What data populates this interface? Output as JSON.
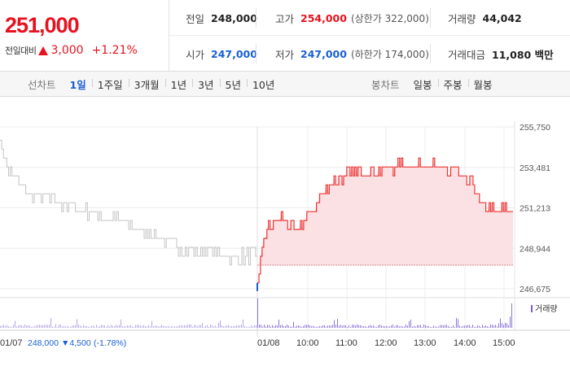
{
  "quote": {
    "price": "251,000",
    "change_label": "전일대비",
    "change_icon": "triangle-up-icon",
    "change_amount": "3,000",
    "change_rate": "+1.21%",
    "prev_close_label": "전일",
    "prev_close": "248,000",
    "high_label": "고가",
    "high": "254,000",
    "upper_limit": "(상한가 322,000)",
    "volume_label": "거래량",
    "volume": "44,042",
    "open_label": "시가",
    "open": "247,000",
    "low_label": "저가",
    "low": "247,000",
    "lower_limit": "(하한가 174,000)",
    "amount_label": "거래대금",
    "amount": "11,080 백만"
  },
  "colors": {
    "up": "#e8121f",
    "down": "#1a5fd6",
    "today_line": "#ee3333",
    "today_fill": "#fbe1e3",
    "prev_line": "#c4c4c4",
    "volume": "#7a5fd0"
  },
  "periods": {
    "line_label": "선차트",
    "line_items": [
      "1일",
      "1주일",
      "3개월",
      "1년",
      "3년",
      "5년",
      "10년"
    ],
    "line_active": 0,
    "candle_label": "봉차트",
    "candle_items": [
      "일봉",
      "주봉",
      "월봉"
    ]
  },
  "chart_data": {
    "type": "line",
    "y_ticks": [
      "255,750",
      "253,481",
      "251,213",
      "248,944",
      "246,675"
    ],
    "ylim": [
      246675,
      255750
    ],
    "prev_day": {
      "date": "01/07",
      "close": "248,000",
      "change": "▼4,500",
      "rate": "(-1.78%)",
      "start": 253200,
      "end": 248500,
      "path": [
        [
          0,
          254800
        ],
        [
          0.04,
          253100
        ],
        [
          0.1,
          252100
        ],
        [
          0.2,
          251600
        ],
        [
          0.35,
          251000
        ],
        [
          0.5,
          250300
        ],
        [
          0.6,
          249700
        ],
        [
          0.7,
          249000
        ],
        [
          0.78,
          248800
        ],
        [
          0.9,
          248500
        ],
        [
          1,
          248500
        ]
      ]
    },
    "today": {
      "date": "01/08",
      "open": 247000,
      "base": 248000,
      "time_ticks": [
        "10:00",
        "11:00",
        "12:00",
        "13:00",
        "14:00",
        "15:00"
      ],
      "path": [
        [
          0,
          247000
        ],
        [
          0.02,
          249200
        ],
        [
          0.05,
          250300
        ],
        [
          0.1,
          250700
        ],
        [
          0.15,
          249800
        ],
        [
          0.2,
          250800
        ],
        [
          0.25,
          251900
        ],
        [
          0.3,
          252700
        ],
        [
          0.35,
          253100
        ],
        [
          0.42,
          253200
        ],
        [
          0.5,
          253400
        ],
        [
          0.58,
          253600
        ],
        [
          0.65,
          253700
        ],
        [
          0.72,
          253400
        ],
        [
          0.78,
          253200
        ],
        [
          0.84,
          252500
        ],
        [
          0.87,
          251400
        ],
        [
          0.93,
          251000
        ],
        [
          0.97,
          251100
        ],
        [
          1,
          251000
        ]
      ]
    },
    "volume_label": "거래량"
  }
}
